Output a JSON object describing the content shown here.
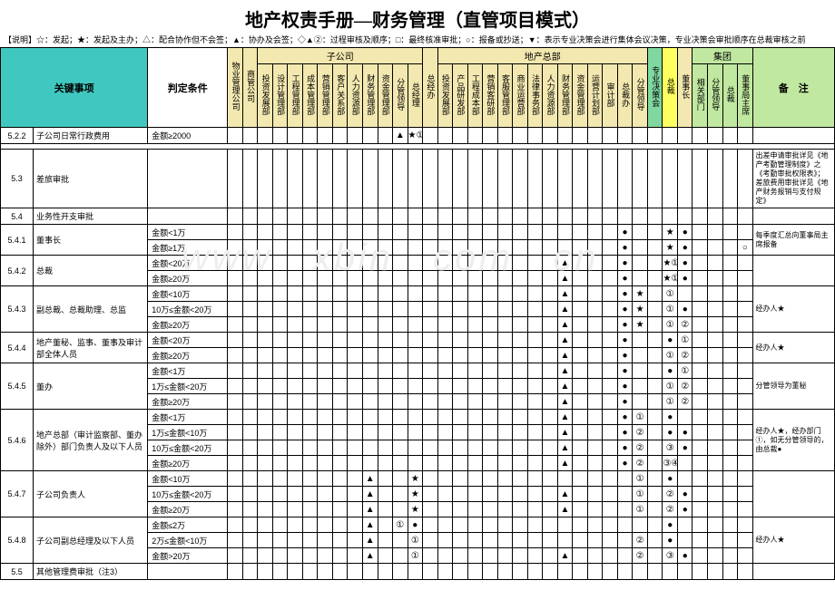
{
  "title": "地产权责手册—财务管理（直管项目模式）",
  "subtitle": "【说明】☆：发起；★：发起及主办；△：配合协作但不会签；▲：协办及会签；◇▲②：过程审核及顺序；□：最终核准审批；○：报备或抄送；▼：表示专业决策会进行集体会议决策，专业决策会审批顺序在总裁审核之前",
  "hdr": {
    "key": "关键事项",
    "cond": "判定条件",
    "notes": "备　注",
    "g1": "子公司",
    "g2": "地产总部",
    "g3": "集团",
    "c": [
      "物业管理公司",
      "商管公司",
      "投资发展部",
      "设计管理部",
      "工程管理部",
      "成本管理部",
      "营销管理部",
      "客户关系部",
      "人力资源部",
      "财务管理部",
      "资金管理部",
      "分管领导",
      "总经理",
      "总经办",
      "投资发展部",
      "产品研发部",
      "工程成本部",
      "营销客研部",
      "客服管理部",
      "商业运营部",
      "法律事务部",
      "人力资源部",
      "财务管理部",
      "资金管理部",
      "运营计划部",
      "审计部",
      "总裁办",
      "分管领导",
      "专业决策会",
      "总裁",
      "董事长",
      "相关部门",
      "分管领导",
      "总裁",
      "董事局主席"
    ]
  },
  "rows": [
    {
      "n": "5.2.2",
      "t": "子公司日常行政费用",
      "c": "金额≥2000",
      "s": {
        "11": "▲",
        "12": "★①"
      },
      "note": ""
    },
    {
      "sep": true
    },
    {
      "n": "5.3",
      "t": "差旅审批",
      "c": "",
      "s": {},
      "note": "出差申请审批详见《地产考勤管理制度》之《考勤审批权限表》；差旅费用审批详见《地产财务报销与支付规定》"
    },
    {
      "n": "5.4",
      "t": "业务性开支审批",
      "c": "",
      "s": {},
      "note": ""
    },
    {
      "n": "5.4.1",
      "t": "董事长",
      "c": "金额<1万",
      "s": {
        "26": "●",
        "29": "★",
        "30": "●"
      },
      "note": "每季度汇总向董事局主席报备",
      "rs": 2
    },
    {
      "c": "金额≥1万",
      "s": {
        "26": "●",
        "29": "★",
        "30": "●",
        "34": "○"
      }
    },
    {
      "n": "5.4.2",
      "t": "总裁",
      "c": "金额<20万",
      "s": {
        "22": "▲",
        "26": "●",
        "29": "★①",
        "30": "●"
      },
      "note": "",
      "rs": 2
    },
    {
      "c": "金额≥20万",
      "s": {
        "22": "▲",
        "26": "●",
        "29": "★①",
        "30": "●"
      }
    },
    {
      "n": "5.4.3",
      "t": "副总裁、总裁助理、总监",
      "c": "金额<10万",
      "s": {
        "22": "▲",
        "26": "●",
        "27": "★",
        "29": "①"
      },
      "note": "经办人★",
      "rs": 3
    },
    {
      "c": "10万≤金额<20万",
      "s": {
        "22": "▲",
        "26": "●",
        "27": "★",
        "29": "①",
        "30": "●"
      }
    },
    {
      "c": "金额≥20万",
      "s": {
        "22": "▲",
        "26": "●",
        "27": "★",
        "29": "①",
        "30": "②"
      }
    },
    {
      "n": "5.4.4",
      "t": "地产董秘、监事、董事及审计部全体人员",
      "c": "金额<20万",
      "s": {
        "22": "▲",
        "26": "●",
        "29": "●",
        "30": "①"
      },
      "note": "经办人★",
      "rs": 2
    },
    {
      "c": "金额≥20万",
      "s": {
        "22": "▲",
        "26": "●",
        "29": "①",
        "30": "②"
      }
    },
    {
      "n": "5.4.5",
      "t": "董办",
      "c": "金额<1万",
      "s": {
        "22": "▲",
        "26": "●",
        "29": "●",
        "30": "①"
      },
      "note": "分管领导为董秘",
      "rs": 3
    },
    {
      "c": "1万≤金额<20万",
      "s": {
        "22": "▲",
        "26": "●",
        "29": "①",
        "30": "②"
      }
    },
    {
      "c": "金额≥20万",
      "s": {
        "22": "▲",
        "26": "●",
        "29": "①",
        "30": "②"
      }
    },
    {
      "n": "5.4.6",
      "t": "地产总部（审计监察部、董办除外）部门负责人及以下人员",
      "c": "金额<1万",
      "s": {
        "22": "▲",
        "26": "●",
        "27": "①",
        "29": "●"
      },
      "note": "经办人★，经办部门①，如无分管领导的，由总裁●",
      "rs": 4
    },
    {
      "c": "1万≤金额<10万",
      "s": {
        "22": "▲",
        "26": "●",
        "27": "②",
        "29": "●",
        "30": "●"
      }
    },
    {
      "c": "10万≤金额<20万",
      "s": {
        "22": "▲",
        "26": "●",
        "27": "②",
        "29": "③",
        "30": "●"
      }
    },
    {
      "c": "金额≥20万",
      "s": {
        "22": "▲",
        "26": "●",
        "27": "②",
        "29": "③④",
        "30": ""
      }
    },
    {
      "n": "5.4.7",
      "t": "子公司负责人",
      "c": "金额<10万",
      "s": {
        "9": "▲",
        "12": "★",
        "27": "①",
        "29": "●"
      },
      "note": "",
      "rs": 3
    },
    {
      "c": "10万≤金额<20万",
      "s": {
        "9": "▲",
        "12": "★",
        "22": "▲",
        "27": "①",
        "29": "②",
        "30": "●"
      }
    },
    {
      "c": "金额≥20万",
      "s": {
        "9": "▲",
        "12": "★",
        "22": "▲",
        "27": "①",
        "29": "②",
        "30": "●"
      }
    },
    {
      "n": "5.4.8",
      "t": "子公司副总经理及以下人员",
      "c": "金额≤2万",
      "s": {
        "9": "▲",
        "11": "①",
        "12": "●",
        "29": "●"
      },
      "note": "经办人★",
      "rs": 3
    },
    {
      "c": "2万≤金额<10万",
      "s": {
        "9": "▲",
        "12": "①",
        "27": "②",
        "29": "●"
      }
    },
    {
      "c": "金额>20万",
      "s": {
        "9": "▲",
        "12": "①",
        "22": "▲",
        "27": "②",
        "29": "③",
        "30": "●"
      }
    },
    {
      "n": "5.5",
      "t": "其他管理费审批（注3）",
      "c": "",
      "s": {},
      "note": ""
    }
  ],
  "colw": {
    "num": 36,
    "txt": 126,
    "cond": 88,
    "sym": 16.5,
    "note": 90
  }
}
